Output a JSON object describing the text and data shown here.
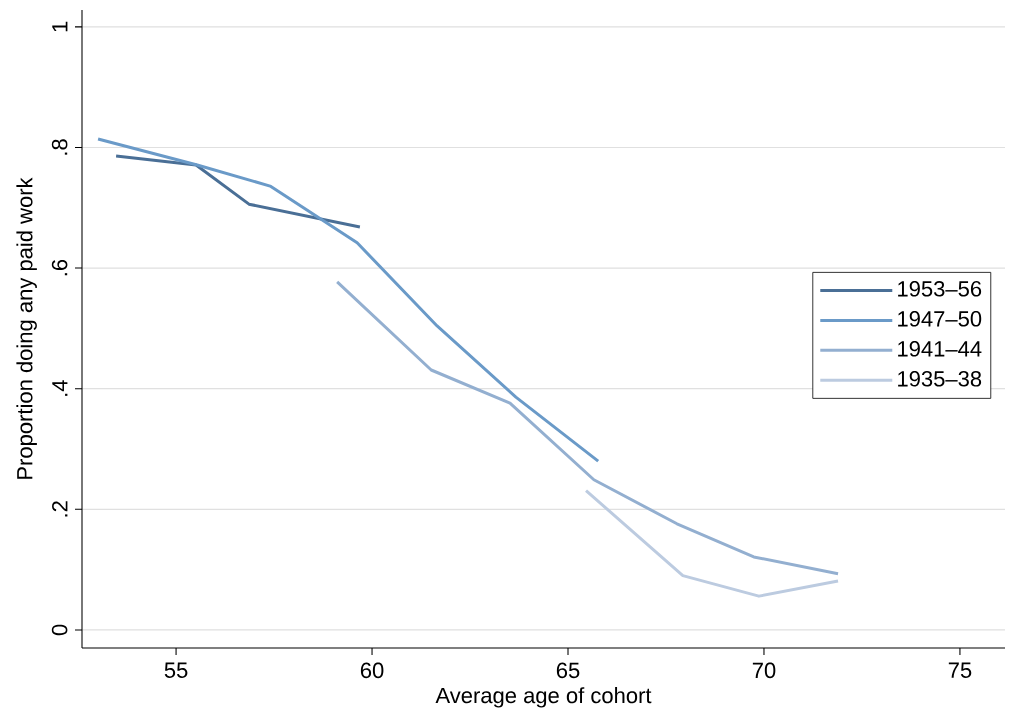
{
  "chart_data": {
    "type": "line",
    "xlabel": "Average age of cohort",
    "ylabel": "Proportion doing any paid work",
    "xlim": [
      52.6,
      76.15
    ],
    "ylim": [
      -0.03,
      1.028
    ],
    "xticks": [
      55,
      60,
      65,
      70,
      75
    ],
    "yticks": [
      {
        "value": 0,
        "label": "0"
      },
      {
        "value": 0.2,
        "label": ".2"
      },
      {
        "value": 0.4,
        "label": ".4"
      },
      {
        "value": 0.6,
        "label": ".6"
      },
      {
        "value": 0.8,
        "label": ".8"
      },
      {
        "value": 1,
        "label": "1"
      }
    ],
    "grid": "y",
    "legend": "right",
    "series": [
      {
        "name": "1953–56",
        "color": "#4a6f96",
        "x": [
          53.47,
          55.51,
          56.86,
          59.69
        ],
        "values": [
          0.786,
          0.771,
          0.706,
          0.668
        ]
      },
      {
        "name": "1947–50",
        "color": "#6a9ac8",
        "x": [
          53.01,
          55.54,
          57.4,
          59.62,
          61.66,
          63.67,
          65.77
        ],
        "values": [
          0.814,
          0.771,
          0.736,
          0.642,
          0.504,
          0.386,
          0.28
        ]
      },
      {
        "name": "1941–44",
        "color": "#93afd0",
        "x": [
          59.11,
          61.51,
          63.52,
          65.66,
          67.78,
          69.74,
          71.89
        ],
        "values": [
          0.577,
          0.431,
          0.376,
          0.249,
          0.176,
          0.121,
          0.093
        ]
      },
      {
        "name": "1935–38",
        "color": "#bccbe0",
        "x": [
          65.46,
          67.93,
          69.87,
          71.89
        ],
        "values": [
          0.231,
          0.09,
          0.056,
          0.081
        ]
      }
    ]
  }
}
